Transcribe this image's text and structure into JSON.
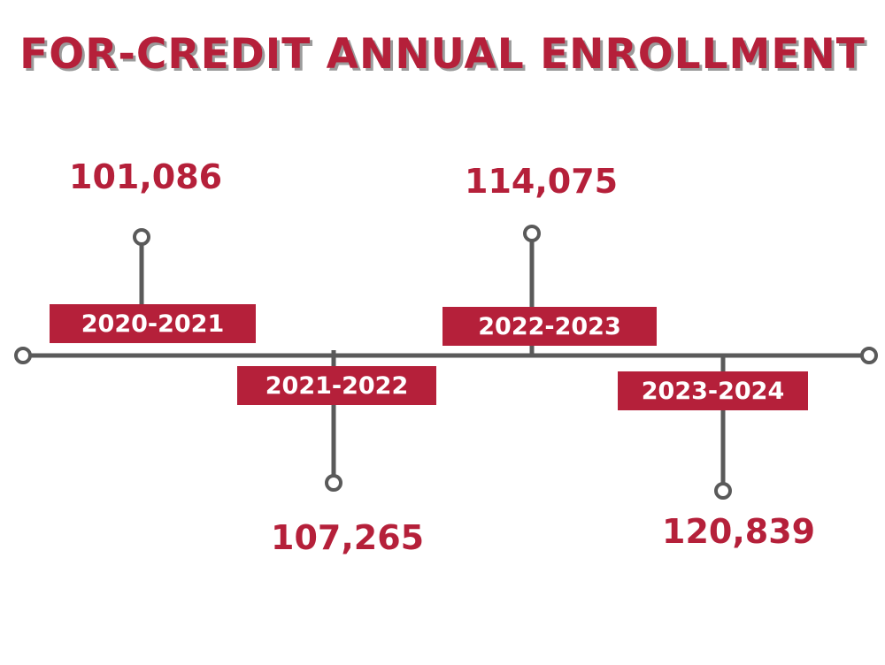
{
  "title": "FOR-CREDIT ANNUAL ENROLLMENT",
  "colors": {
    "accent": "#b5203a",
    "line": "#5a5a5a",
    "shadow": "#9b9b9b"
  },
  "entries": [
    {
      "year": "2020-2021",
      "value": "101,086"
    },
    {
      "year": "2021-2022",
      "value": "107,265"
    },
    {
      "year": "2022-2023",
      "value": "114,075"
    },
    {
      "year": "2023-2024",
      "value": "120,839"
    }
  ]
}
